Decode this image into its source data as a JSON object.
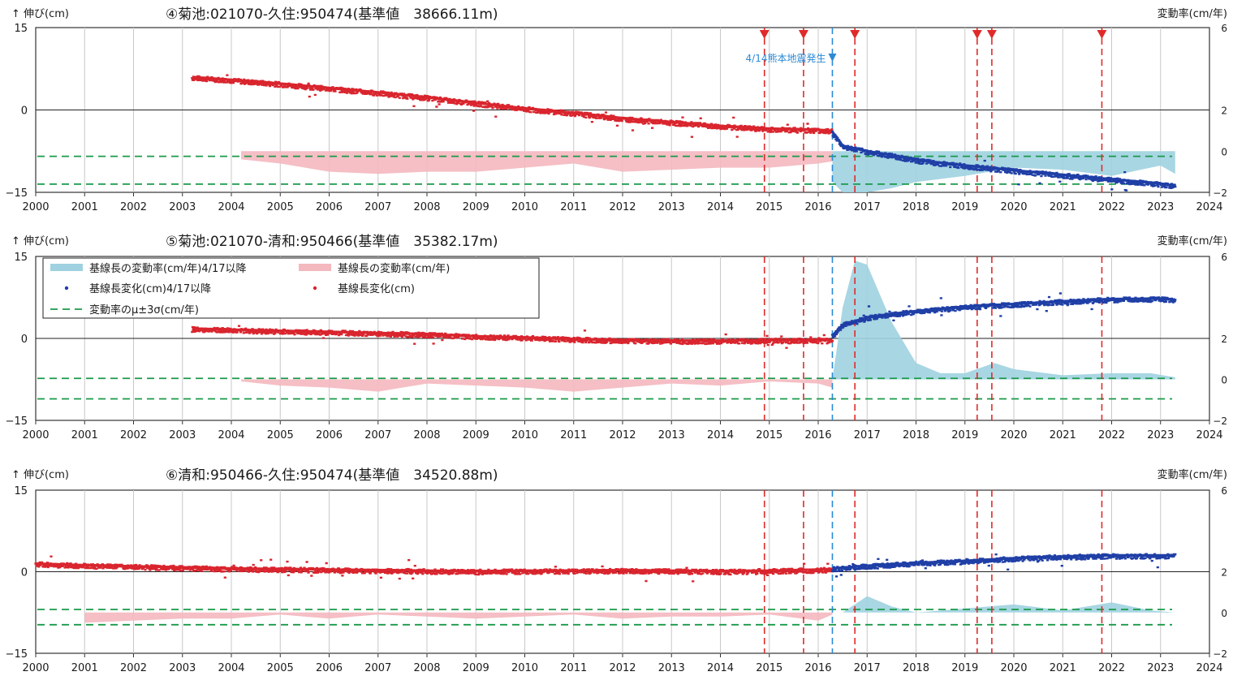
{
  "charts": [
    {
      "title": "④菊池:021070-久住:950474(基準値　38666.11m)",
      "ylabel_left": "↑ 伸び(cm)",
      "ylabel_right": "変動率(cm/年)",
      "quake_label": "4/14熊本地震発生",
      "left_ticks": [
        "15",
        "0",
        "−15"
      ],
      "right_ticks": [
        "6",
        "2",
        "0",
        "−2"
      ]
    },
    {
      "title": "⑤菊池:021070-清和:950466(基準値　35382.17m)",
      "ylabel_left": "↑ 伸び(cm)",
      "ylabel_right": "変動率(cm/年)",
      "left_ticks": [
        "15",
        "0",
        "−15"
      ],
      "right_ticks": [
        "6",
        "2",
        "0",
        "−2"
      ]
    },
    {
      "title": "⑥清和:950466-久住:950474(基準値　34520.88m)",
      "ylabel_left": "↑ 伸び(cm)",
      "ylabel_right": "変動率(cm/年)",
      "left_ticks": [
        "15",
        "0",
        "−15"
      ],
      "right_ticks": [
        "6",
        "2",
        "0",
        "−2"
      ]
    }
  ],
  "legend": {
    "rate_after": "基線長の変動率(cm/年)4/17以降",
    "rate_before": "基線長の変動率(cm/年)",
    "change_after": "基線長変化(cm)4/17以降",
    "change_before": "基線長変化(cm)",
    "sigma": "変動率のμ±3σ(cm/年)"
  },
  "colors": {
    "before": "#d9252e",
    "after": "#1f3fa6",
    "rate_before_fill": "#f4b8bf",
    "rate_after_fill": "#9fd1e0",
    "sigma_line": "#1a9a4a",
    "event_line": "#e02a2a",
    "quake_line": "#2b8ad6"
  },
  "chart_data": [
    {
      "type": "line",
      "x_range": [
        2000,
        2024
      ],
      "xticks": [
        "2000",
        "2001",
        "2002",
        "2003",
        "2004",
        "2005",
        "2006",
        "2007",
        "2008",
        "2009",
        "2010",
        "2011",
        "2012",
        "2013",
        "2014",
        "2015",
        "2016",
        "2017",
        "2018",
        "2019",
        "2020",
        "2021",
        "2022",
        "2023",
        "2024"
      ],
      "ylim_left": [
        -15,
        15
      ],
      "ylim_right": [
        -2,
        6
      ],
      "grid": true,
      "quake_date": 2016.29,
      "event_dates": [
        2014.9,
        2015.7,
        2016.75,
        2019.25,
        2019.55,
        2021.8
      ],
      "event_markers": true,
      "sigma_lines": [
        -0.25,
        -1.6
      ],
      "series": [
        {
          "name": "基線長変化(cm)",
          "x": [
            2003.2,
            2004,
            2005,
            2006,
            2007,
            2008,
            2009,
            2010,
            2011,
            2012,
            2013,
            2014,
            2015,
            2016,
            2016.29
          ],
          "y": [
            6,
            5.5,
            4.8,
            4,
            3.2,
            2.3,
            1.3,
            0.3,
            -0.5,
            -1.5,
            -2.2,
            -2.9,
            -3.4,
            -3.6,
            -3.8
          ]
        },
        {
          "name": "基線長変化(cm)4/17以降",
          "x": [
            2016.29,
            2016.5,
            2017,
            2017.5,
            2018,
            2019,
            2020,
            2021,
            2022,
            2023,
            2023.3
          ],
          "y": [
            -4,
            -6.5,
            -7.5,
            -8.2,
            -9.1,
            -10.1,
            -11,
            -11.8,
            -12.6,
            -13.4,
            -13.8
          ]
        },
        {
          "name": "基線長の変動率(cm/年)",
          "x": [
            2004.2,
            2005,
            2006,
            2007,
            2008,
            2009,
            2010,
            2011,
            2012,
            2013,
            2014,
            2015,
            2016,
            2016.29
          ],
          "y": [
            -0.4,
            -0.6,
            -1.0,
            -1.1,
            -1.0,
            -1.0,
            -0.8,
            -0.6,
            -1.0,
            -0.9,
            -0.8,
            -0.8,
            -0.6,
            -0.5
          ]
        },
        {
          "name": "基線長の変動率(cm/年)4/17以降",
          "x": [
            2016.29,
            2016.5,
            2017,
            2017.5,
            2018,
            2019,
            2020,
            2021,
            2022,
            2023,
            2023.3
          ],
          "y": [
            -1.5,
            -2.0,
            -2.0,
            -1.8,
            -1.5,
            -1.2,
            -0.8,
            -0.9,
            -1.2,
            -0.7,
            -1.1
          ]
        }
      ]
    },
    {
      "type": "line",
      "x_range": [
        2000,
        2024
      ],
      "xticks": [
        "2000",
        "2001",
        "2002",
        "2003",
        "2004",
        "2005",
        "2006",
        "2007",
        "2008",
        "2009",
        "2010",
        "2011",
        "2012",
        "2013",
        "2014",
        "2015",
        "2016",
        "2017",
        "2018",
        "2019",
        "2020",
        "2021",
        "2022",
        "2023",
        "2024"
      ],
      "ylim_left": [
        -15,
        15
      ],
      "ylim_right": [
        -2,
        6
      ],
      "grid": true,
      "quake_date": 2016.29,
      "event_dates": [
        2014.9,
        2015.7,
        2016.75,
        2019.25,
        2019.55,
        2021.8
      ],
      "event_markers": false,
      "sigma_lines": [
        0.05,
        -0.95
      ],
      "series": [
        {
          "name": "基線長変化(cm)",
          "x": [
            2003.2,
            2004,
            2005,
            2006,
            2007,
            2008,
            2009,
            2010,
            2011,
            2012,
            2013,
            2014,
            2015,
            2016,
            2016.29
          ],
          "y": [
            1.8,
            1.6,
            1.4,
            1.2,
            1.0,
            0.8,
            0.4,
            0.2,
            -0.1,
            -0.3,
            -0.4,
            -0.4,
            -0.3,
            -0.3,
            -0.3
          ]
        },
        {
          "name": "基線長変化(cm)4/17以降",
          "x": [
            2016.29,
            2016.5,
            2017,
            2017.5,
            2018,
            2019,
            2020,
            2021,
            2022,
            2023,
            2023.3
          ],
          "y": [
            0.5,
            2.5,
            3.8,
            4.5,
            5,
            5.8,
            6.3,
            6.8,
            7.2,
            7.3,
            7.1
          ]
        },
        {
          "name": "基線長の変動率(cm/年)",
          "x": [
            2004.2,
            2005,
            2006,
            2007,
            2008,
            2009,
            2010,
            2011,
            2012,
            2013,
            2014,
            2015,
            2016,
            2016.29
          ],
          "y": [
            -0.1,
            -0.3,
            -0.4,
            -0.6,
            -0.2,
            -0.3,
            -0.4,
            -0.6,
            -0.4,
            -0.2,
            -0.3,
            -0.1,
            -0.2,
            -0.4
          ]
        },
        {
          "name": "基線長の変動率(cm/年)4/17以降",
          "x": [
            2016.29,
            2016.5,
            2016.75,
            2017,
            2017.5,
            2018,
            2018.5,
            2019,
            2019.6,
            2020,
            2021,
            2022,
            2022.8,
            2023.3
          ],
          "y": [
            0,
            3.5,
            5.8,
            5.6,
            2.8,
            0.8,
            0.3,
            0.3,
            0.8,
            0.5,
            0.2,
            0.3,
            0.3,
            0.1
          ]
        }
      ]
    },
    {
      "type": "line",
      "x_range": [
        2000,
        2024
      ],
      "xticks": [
        "2000",
        "2001",
        "2002",
        "2003",
        "2004",
        "2005",
        "2006",
        "2007",
        "2008",
        "2009",
        "2010",
        "2011",
        "2012",
        "2013",
        "2014",
        "2015",
        "2016",
        "2017",
        "2018",
        "2019",
        "2020",
        "2021",
        "2022",
        "2023",
        "2024"
      ],
      "ylim_left": [
        -15,
        15
      ],
      "ylim_right": [
        -2,
        6
      ],
      "grid": true,
      "quake_date": 2016.29,
      "event_dates": [
        2014.9,
        2015.7,
        2016.75,
        2019.25,
        2019.55,
        2021.8
      ],
      "event_markers": false,
      "sigma_lines": [
        0.15,
        -0.6
      ],
      "series": [
        {
          "name": "基線長変化(cm)",
          "x": [
            2000,
            2001,
            2002,
            2003,
            2004,
            2005,
            2006,
            2007,
            2008,
            2009,
            2010,
            2011,
            2012,
            2013,
            2014,
            2015,
            2016,
            2016.29
          ],
          "y": [
            1.5,
            1.2,
            1.0,
            0.8,
            0.6,
            0.5,
            0.4,
            0.3,
            0.2,
            0.1,
            0.2,
            0.2,
            0.3,
            0.2,
            0.1,
            0.2,
            0.4,
            0.5
          ]
        },
        {
          "name": "基線長変化(cm)4/17以降",
          "x": [
            2016.29,
            2017,
            2018,
            2019,
            2020,
            2021,
            2022,
            2023,
            2023.3
          ],
          "y": [
            0.6,
            1.1,
            1.6,
            2,
            2.5,
            2.8,
            3,
            3,
            3
          ]
        },
        {
          "name": "基線長の変動率(cm/年)",
          "x": [
            2001,
            2002,
            2003,
            2004,
            2005,
            2006,
            2007,
            2008,
            2009,
            2010,
            2011,
            2012,
            2013,
            2014,
            2015,
            2016,
            2016.29
          ],
          "y": [
            -0.5,
            -0.4,
            -0.3,
            -0.3,
            -0.1,
            -0.3,
            -0.1,
            -0.2,
            -0.3,
            -0.2,
            -0.1,
            -0.3,
            -0.2,
            -0.2,
            -0.1,
            -0.4,
            -0.1
          ]
        },
        {
          "name": "基線長の変動率(cm/年)4/17以降",
          "x": [
            2016.29,
            2016.5,
            2017,
            2017.5,
            2018,
            2019,
            2020,
            2021,
            2022,
            2022.8,
            2023.3
          ],
          "y": [
            0,
            0,
            0.8,
            0.3,
            0,
            0.2,
            0.4,
            0.1,
            0.5,
            0.1,
            0
          ]
        }
      ]
    }
  ]
}
